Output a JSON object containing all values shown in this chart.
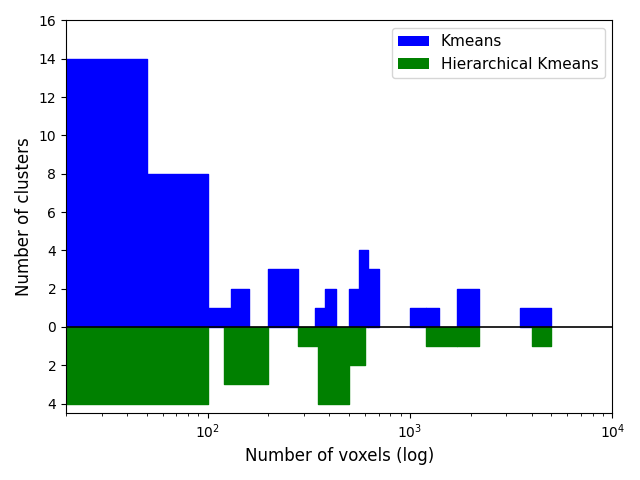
{
  "xlabel": "Number of voxels (log)",
  "ylabel": "Number of clusters",
  "xlim": [
    20,
    10000
  ],
  "ylim": [
    -4.5,
    16
  ],
  "blue_label": "Kmeans",
  "green_label": "Hierarchical Kmeans",
  "blue_color": "#0000ff",
  "green_color": "#008000",
  "blue_bins": [
    20,
    50,
    100,
    130,
    160,
    200,
    280,
    340,
    380,
    430,
    500,
    560,
    620,
    700,
    800,
    1000,
    1200,
    1400,
    1700,
    2200,
    3000,
    3500,
    5000,
    6000,
    10000
  ],
  "blue_counts": [
    14,
    8,
    1,
    2,
    0,
    3,
    0,
    1,
    2,
    0,
    2,
    4,
    3,
    0,
    0,
    1,
    1,
    0,
    2,
    0,
    0,
    1,
    0,
    0,
    0
  ],
  "green_bins": [
    20,
    100,
    120,
    200,
    280,
    350,
    500,
    600,
    700,
    1200,
    1700,
    2200,
    3000,
    4000,
    5000,
    10000
  ],
  "green_counts": [
    4,
    0,
    3,
    0,
    1,
    4,
    2,
    0,
    0,
    1,
    1,
    0,
    0,
    1,
    0,
    0
  ],
  "yticks": [
    -4,
    -2,
    0,
    2,
    4,
    6,
    8,
    10,
    12,
    14,
    16
  ]
}
